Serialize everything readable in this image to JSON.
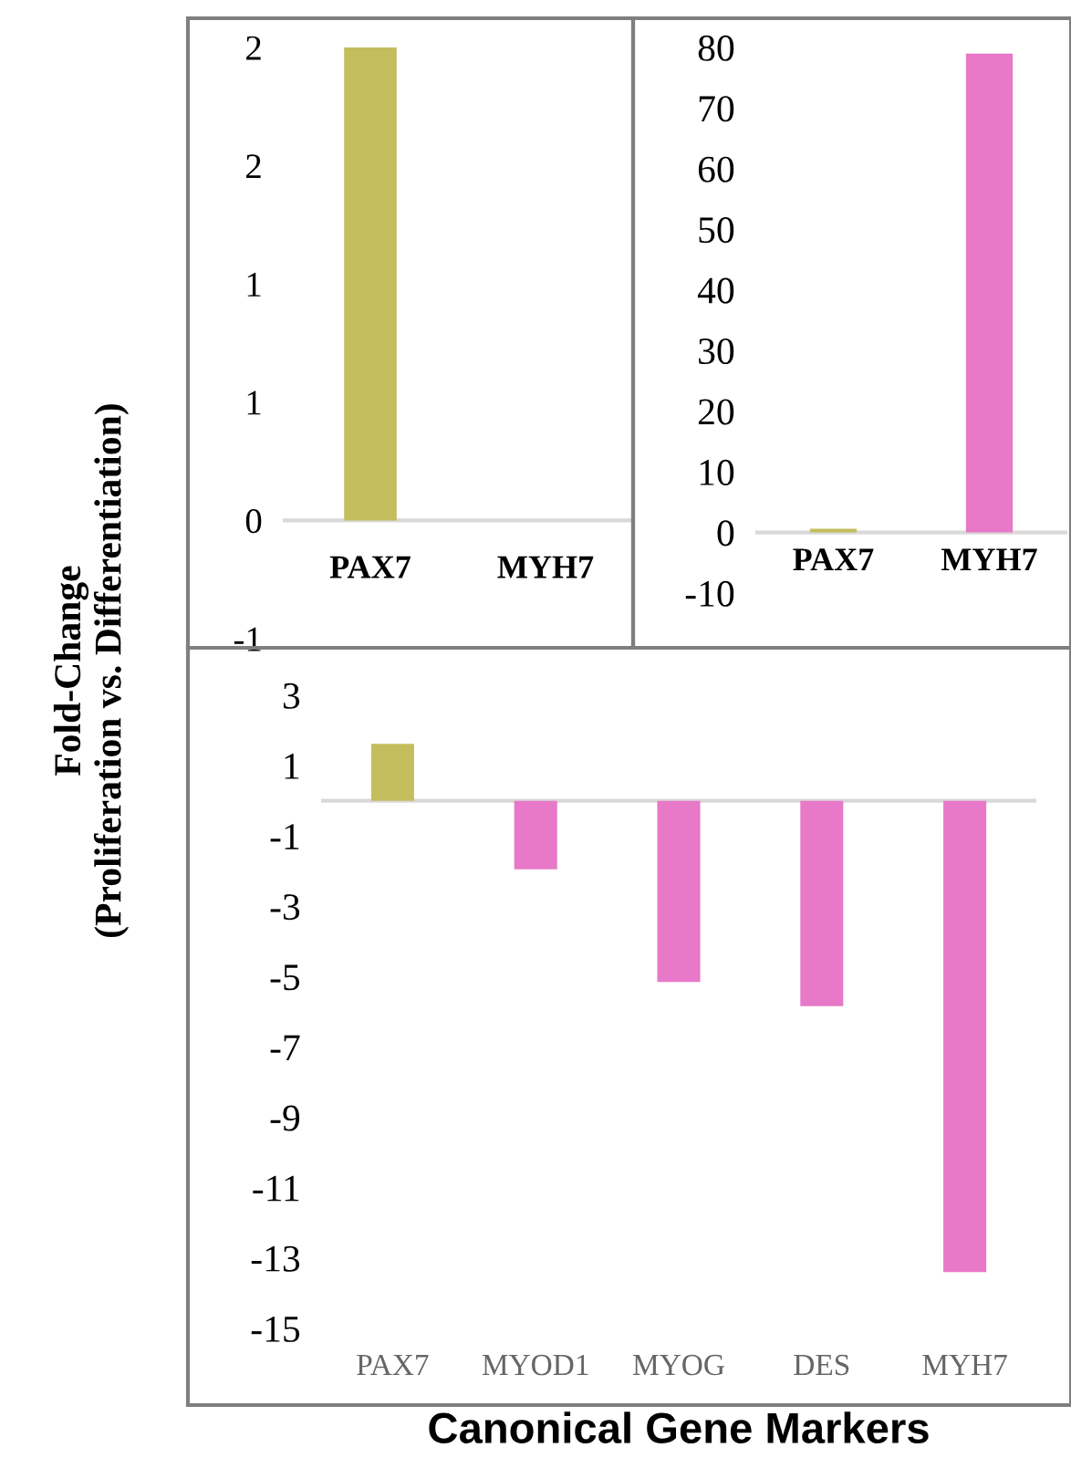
{
  "chart_data": [
    {
      "type": "bar",
      "categories": [
        "PAX7",
        "MYH7"
      ],
      "values": [
        2.0,
        0
      ],
      "colors": [
        "#c4bd5e",
        "#e878c8"
      ],
      "ylim": [
        -0.5,
        2
      ],
      "yticks": [
        {
          "value": -0.5,
          "label": "-1"
        },
        0,
        {
          "value": 0.5,
          "label": "1"
        },
        {
          "value": 1,
          "label": "1"
        },
        {
          "value": 1.5,
          "label": "2"
        },
        {
          "value": 2,
          "label": "2"
        }
      ],
      "grid": false,
      "legend": false
    },
    {
      "type": "bar",
      "categories": [
        "PAX7",
        "MYH7"
      ],
      "values": [
        0.6,
        79
      ],
      "colors": [
        "#c4bd5e",
        "#e878c8"
      ],
      "ylim": [
        -10,
        80
      ],
      "yticks": [
        -10,
        0,
        10,
        20,
        30,
        40,
        50,
        60,
        70,
        80
      ],
      "grid": false,
      "legend": false
    },
    {
      "type": "bar",
      "categories": [
        "PAX7",
        "MYOD1",
        "MYOG",
        "DES",
        "MYH7"
      ],
      "values": [
        1.62,
        -1.95,
        -5.15,
        -5.84,
        -13.4
      ],
      "colors": [
        "#c4bd5e",
        "#e878c8",
        "#e878c8",
        "#e878c8",
        "#e878c8"
      ],
      "ylim": [
        -15,
        3
      ],
      "yticks": [
        -15,
        -13,
        -11,
        -9,
        -7,
        -5,
        -3,
        -1,
        1,
        3
      ],
      "xlabel": "Canonical Gene Markers",
      "ylabel": "Fold-Change\n(Proliferation vs. Differentiation)",
      "grid": false,
      "legend": false
    }
  ]
}
